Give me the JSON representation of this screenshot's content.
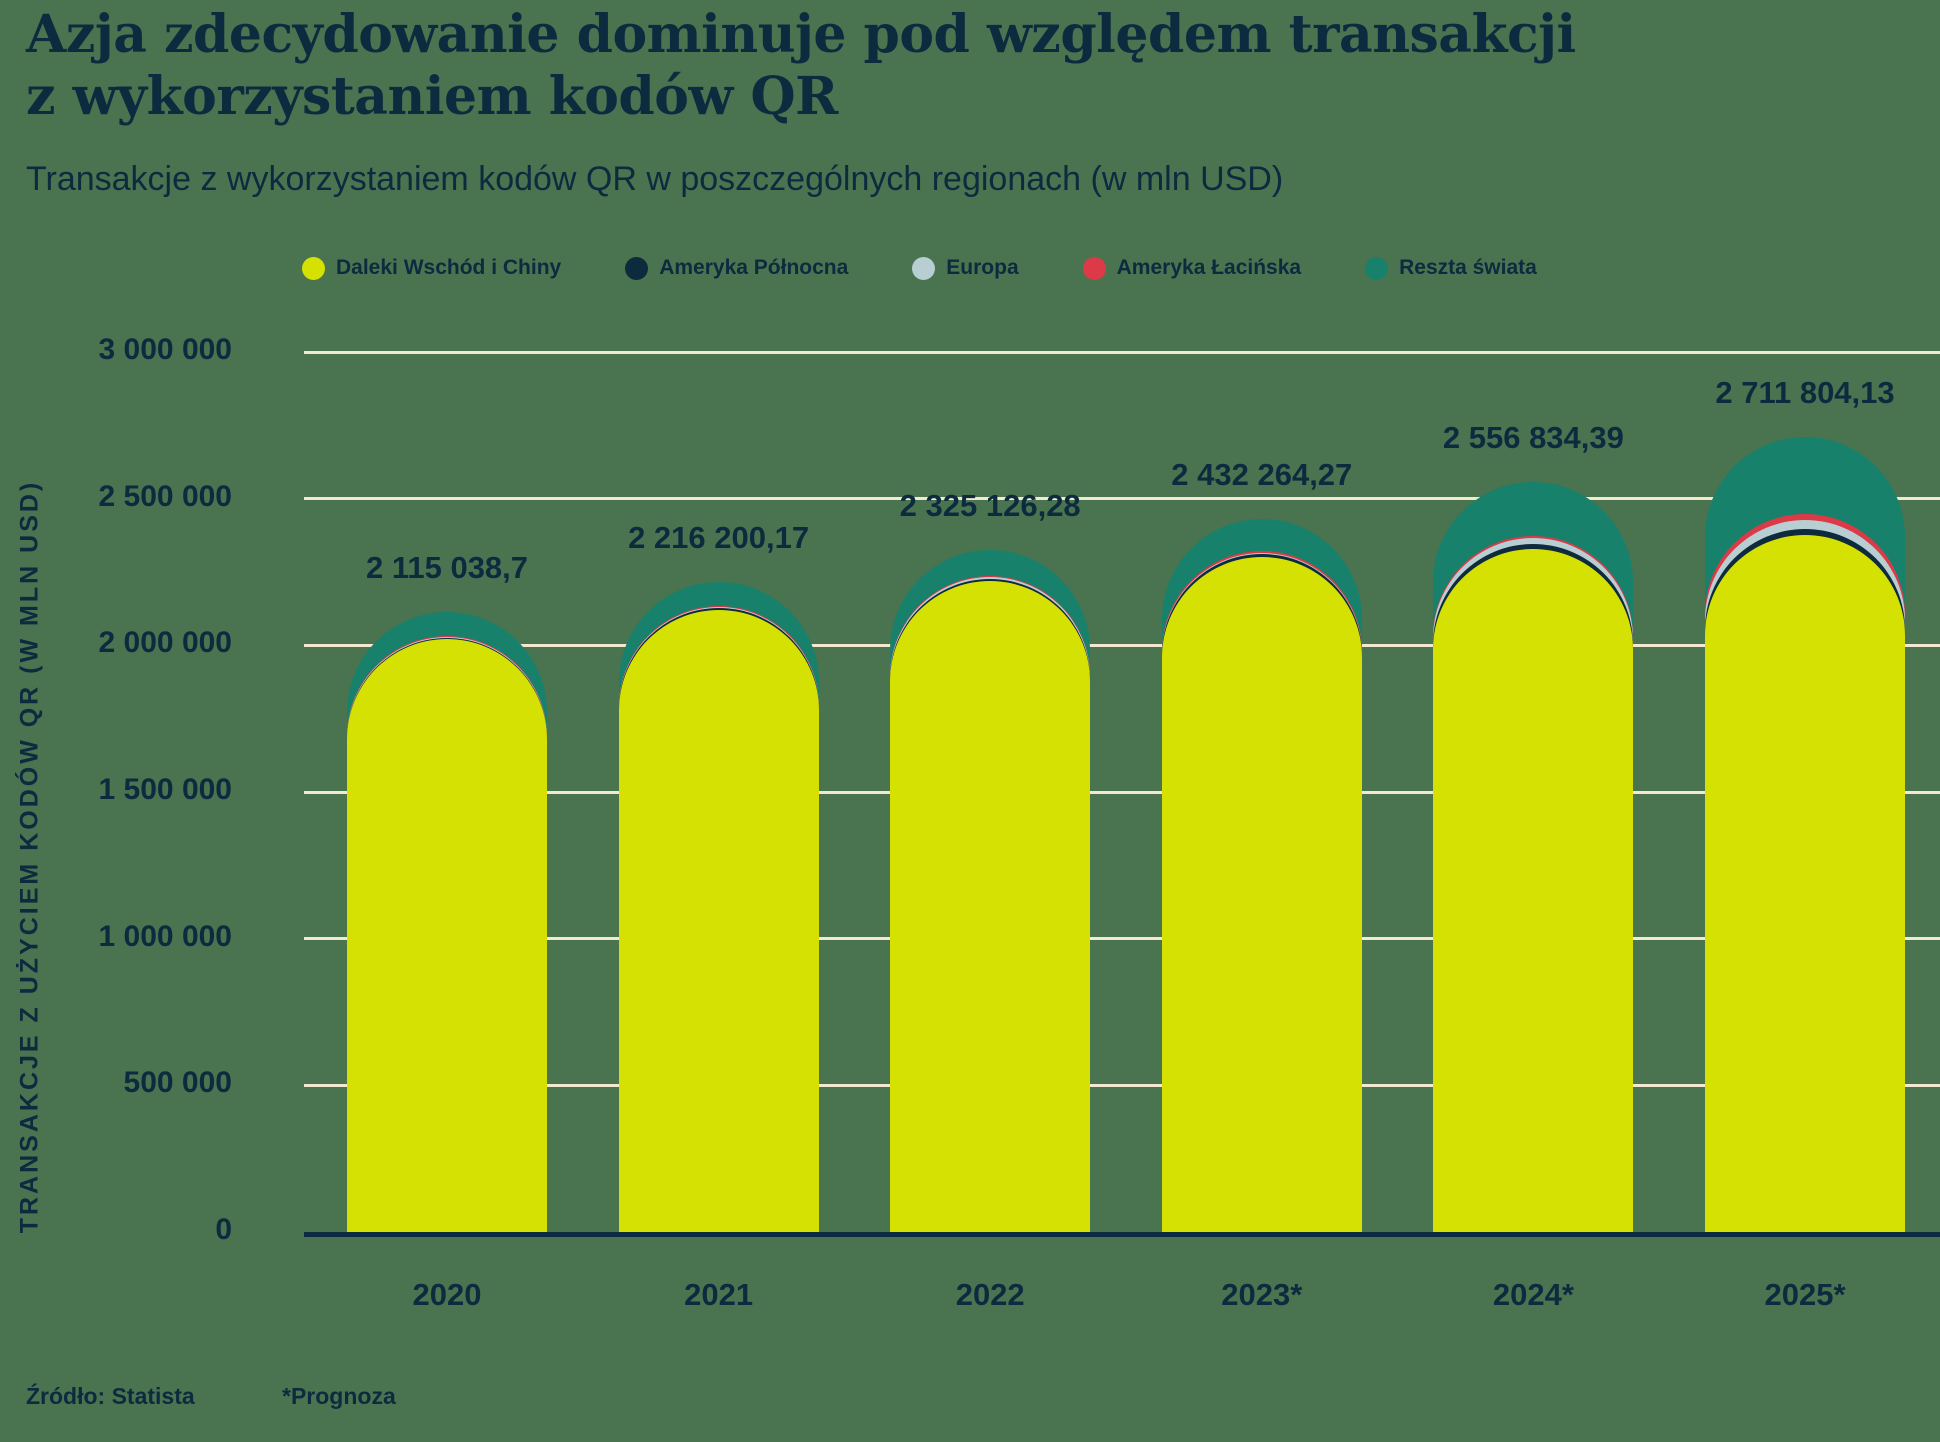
{
  "title": {
    "line1": "Azja zdecydowanie dominuje pod względem transakcji",
    "line2": "z wykorzystaniem kodów QR"
  },
  "subtitle": "Transakcje z wykorzystaniem kodów QR w poszczególnych regionach (w mln USD)",
  "y_axis": {
    "title": "TRANSAKCJE Z UŻYCIEM KODÓW QR (W MLN USD)",
    "ticks": [
      {
        "label": "3 000 000",
        "value": 3000000
      },
      {
        "label": "2 500 000",
        "value": 2500000
      },
      {
        "label": "2 000 000",
        "value": 2000000
      },
      {
        "label": "1 500 000",
        "value": 1500000
      },
      {
        "label": "1 000 000",
        "value": 1000000
      },
      {
        "label": "500 000",
        "value": 500000
      },
      {
        "label": "0",
        "value": 0
      }
    ]
  },
  "footer": {
    "source": "Źródło: Statista",
    "note": "*Prognoza"
  },
  "colors": {
    "background": "#4a7350",
    "text": "#0d2b3f",
    "gridline": "#f3e8d0",
    "axis_line": "#0d2b3f"
  },
  "chart_data": {
    "type": "bar",
    "stacked": true,
    "grid": true,
    "legend_position": "top",
    "categories": [
      "2020",
      "2021",
      "2022",
      "2023*",
      "2024*",
      "2025*"
    ],
    "totals": [
      2115038.7,
      2216200.17,
      2325126.28,
      2432264.27,
      2556834.39,
      2711804.13
    ],
    "total_labels": [
      "2 115 038,7",
      "2 216 200,17",
      "2 325 126,28",
      "2 432 264,27",
      "2 556 834,39",
      "2 711 804,13"
    ],
    "series": [
      {
        "name": "Daleki Wschód i Chiny",
        "color": "#d5e003",
        "values": [
          2020000,
          2120000,
          2220000,
          2300000,
          2330000,
          2375000
        ]
      },
      {
        "name": "Ameryka Północna",
        "color": "#0e2a3d",
        "values": [
          5000,
          6000,
          7000,
          10000,
          14000,
          22000
        ]
      },
      {
        "name": "Europa",
        "color": "#b7ced3",
        "values": [
          3500,
          4000,
          5000,
          6000,
          21000,
          30000
        ]
      },
      {
        "name": "Ameryka Łacińska",
        "color": "#dc3a46",
        "values": [
          2500,
          3000,
          4000,
          5000,
          8000,
          22000
        ]
      },
      {
        "name": "Reszta świata",
        "color": "#17816b",
        "values": [
          84038.7,
          83200.17,
          89126.28,
          111264.27,
          183834.39,
          262804.13
        ]
      }
    ],
    "series_note": "Only stacked totals are labeled in the figure; per-series values are estimated from segment pixel heights and sum exactly to the labeled totals.",
    "xlabel": "",
    "ylabel": "TRANSAKCJE Z UŻYCIEM KODÓW QR (W MLN USD)",
    "ylim": [
      0,
      3000000
    ]
  }
}
